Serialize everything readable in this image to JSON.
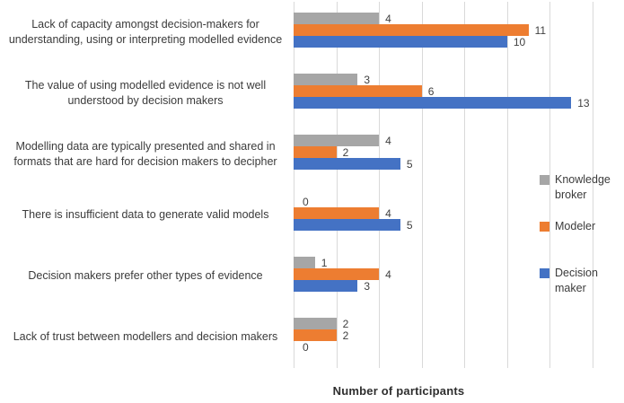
{
  "chart_data": {
    "type": "bar",
    "orientation": "horizontal",
    "title": "",
    "xlabel": "Number of participants",
    "ylabel": "",
    "xlim": [
      0,
      14
    ],
    "gridline_step": 2,
    "grid": true,
    "legend_position": "right",
    "categories": [
      "Lack of capacity amongst decision-makers for understanding, using or interpreting modelled evidence",
      "The value of using modelled evidence is not well understood by decision makers",
      "Modelling data are typically presented and shared in formats that are hard for decision makers to decipher",
      "There is insufficient data to generate valid models",
      "Decision makers  prefer other types of evidence",
      "Lack of trust between modellers and decision makers"
    ],
    "series": [
      {
        "name": "Knowledge broker",
        "color": "#a6a6a6",
        "values": [
          4,
          3,
          4,
          0,
          1,
          2
        ]
      },
      {
        "name": "Modeler",
        "color": "#ed7d31",
        "values": [
          11,
          6,
          2,
          4,
          4,
          2
        ]
      },
      {
        "name": "Decision maker",
        "color": "#4472c4",
        "values": [
          10,
          13,
          5,
          5,
          3,
          0
        ]
      }
    ],
    "colors": {
      "gridline": "#d9d9d9",
      "label_text": "#3b3b3b",
      "value_text": "#404040"
    }
  },
  "axis": {
    "title": "Number of participants"
  }
}
